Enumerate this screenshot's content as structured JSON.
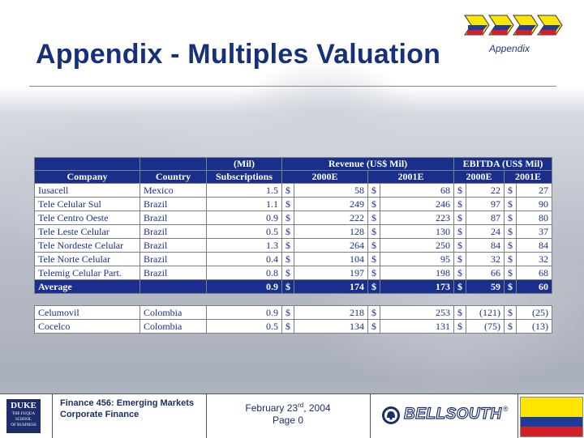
{
  "slide": {
    "title": "Appendix - Multiples Valuation",
    "section_label": "Appendix"
  },
  "table": {
    "header_top": {
      "subs": "(Mil)",
      "revenue": "Revenue (US$ Mil)",
      "ebitda": "EBITDA (US$ Mil)"
    },
    "header_bottom": {
      "company": "Company",
      "country": "Country",
      "subs": "Subscriptions",
      "rev_2000": "2000E",
      "rev_2001": "2001E",
      "ebitda_2000": "2000E",
      "ebitda_2001": "2001E"
    },
    "rows": [
      {
        "company": "Iusacell",
        "country": "Mexico",
        "subs": "1.5",
        "c1": "$",
        "rev2000": "58",
        "c2": "$",
        "rev2001": "68",
        "c3": "$",
        "eb2000": "22",
        "c4": "$",
        "eb2001": "27"
      },
      {
        "company": "Tele Celular Sul",
        "country": "Brazil",
        "subs": "1.1",
        "c1": "$",
        "rev2000": "249",
        "c2": "$",
        "rev2001": "246",
        "c3": "$",
        "eb2000": "97",
        "c4": "$",
        "eb2001": "90"
      },
      {
        "company": "Tele Centro Oeste",
        "country": "Brazil",
        "subs": "0.9",
        "c1": "$",
        "rev2000": "222",
        "c2": "$",
        "rev2001": "223",
        "c3": "$",
        "eb2000": "87",
        "c4": "$",
        "eb2001": "80"
      },
      {
        "company": "Tele Leste Celular",
        "country": "Brazil",
        "subs": "0.5",
        "c1": "$",
        "rev2000": "128",
        "c2": "$",
        "rev2001": "130",
        "c3": "$",
        "eb2000": "24",
        "c4": "$",
        "eb2001": "37"
      },
      {
        "company": "Tele Nordeste Celular",
        "country": "Brazil",
        "subs": "1.3",
        "c1": "$",
        "rev2000": "264",
        "c2": "$",
        "rev2001": "250",
        "c3": "$",
        "eb2000": "84",
        "c4": "$",
        "eb2001": "84"
      },
      {
        "company": "Tele Norte Celular",
        "country": "Brazil",
        "subs": "0.4",
        "c1": "$",
        "rev2000": "104",
        "c2": "$",
        "rev2001": "95",
        "c3": "$",
        "eb2000": "32",
        "c4": "$",
        "eb2001": "32"
      },
      {
        "company": "Telemig Celular Part.",
        "country": "Brazil",
        "subs": "0.8",
        "c1": "$",
        "rev2000": "197",
        "c2": "$",
        "rev2001": "198",
        "c3": "$",
        "eb2000": "66",
        "c4": "$",
        "eb2001": "68"
      }
    ],
    "average": {
      "label": "Average",
      "subs": "0.9",
      "c1": "$",
      "rev2000": "174",
      "c2": "$",
      "rev2001": "173",
      "c3": "$",
      "eb2000": "59",
      "c4": "$",
      "eb2001": "60"
    },
    "others": [
      {
        "company": "Celumovil",
        "country": "Colombia",
        "subs": "0.9",
        "c1": "$",
        "rev2000": "218",
        "c2": "$",
        "rev2001": "253",
        "c3": "$",
        "eb2000": "(121)",
        "c4": "$",
        "eb2001": "(25)"
      },
      {
        "company": "Cocelco",
        "country": "Colombia",
        "subs": "0.5",
        "c1": "$",
        "rev2000": "134",
        "c2": "$",
        "rev2001": "131",
        "c3": "$",
        "eb2000": "(75)",
        "c4": "$",
        "eb2001": "(13)"
      }
    ]
  },
  "footer": {
    "logo_text": [
      "DUKE",
      "THE FUQUA",
      "SCHOOL",
      "OF BUSINESS"
    ],
    "course": "Finance 456: Emerging Markets Corporate Finance",
    "date_prefix": "February 23",
    "date_sup": "rd",
    "date_suffix": ", 2004",
    "page": "Page 0",
    "sponsor": "BELLSOUTH",
    "sponsor_mark": "®"
  },
  "colors": {
    "navy": "#1a2f8c",
    "title": "#17307a",
    "flag_yellow": "#ffe600",
    "flag_blue": "#1d3c9c",
    "flag_red": "#d51f26"
  }
}
